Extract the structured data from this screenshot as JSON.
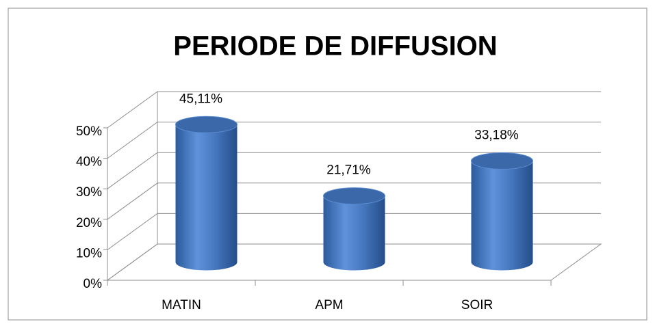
{
  "chart_data": {
    "type": "bar3d",
    "title": "PERIODE DE DIFFUSION",
    "categories": [
      "MATIN",
      "APM",
      "SOIR"
    ],
    "values": [
      45.11,
      21.71,
      33.18
    ],
    "value_labels": [
      "45,11%",
      "21,71%",
      "33,18%"
    ],
    "color": "#4a7cc4",
    "ylim": [
      0,
      50
    ],
    "yticks": [
      {
        "value": 0,
        "label": "0%"
      },
      {
        "value": 10,
        "label": "10%"
      },
      {
        "value": 20,
        "label": "20%"
      },
      {
        "value": 30,
        "label": "30%"
      },
      {
        "value": 40,
        "label": "40%"
      },
      {
        "value": 50,
        "label": "50%"
      }
    ],
    "grid": true
  }
}
